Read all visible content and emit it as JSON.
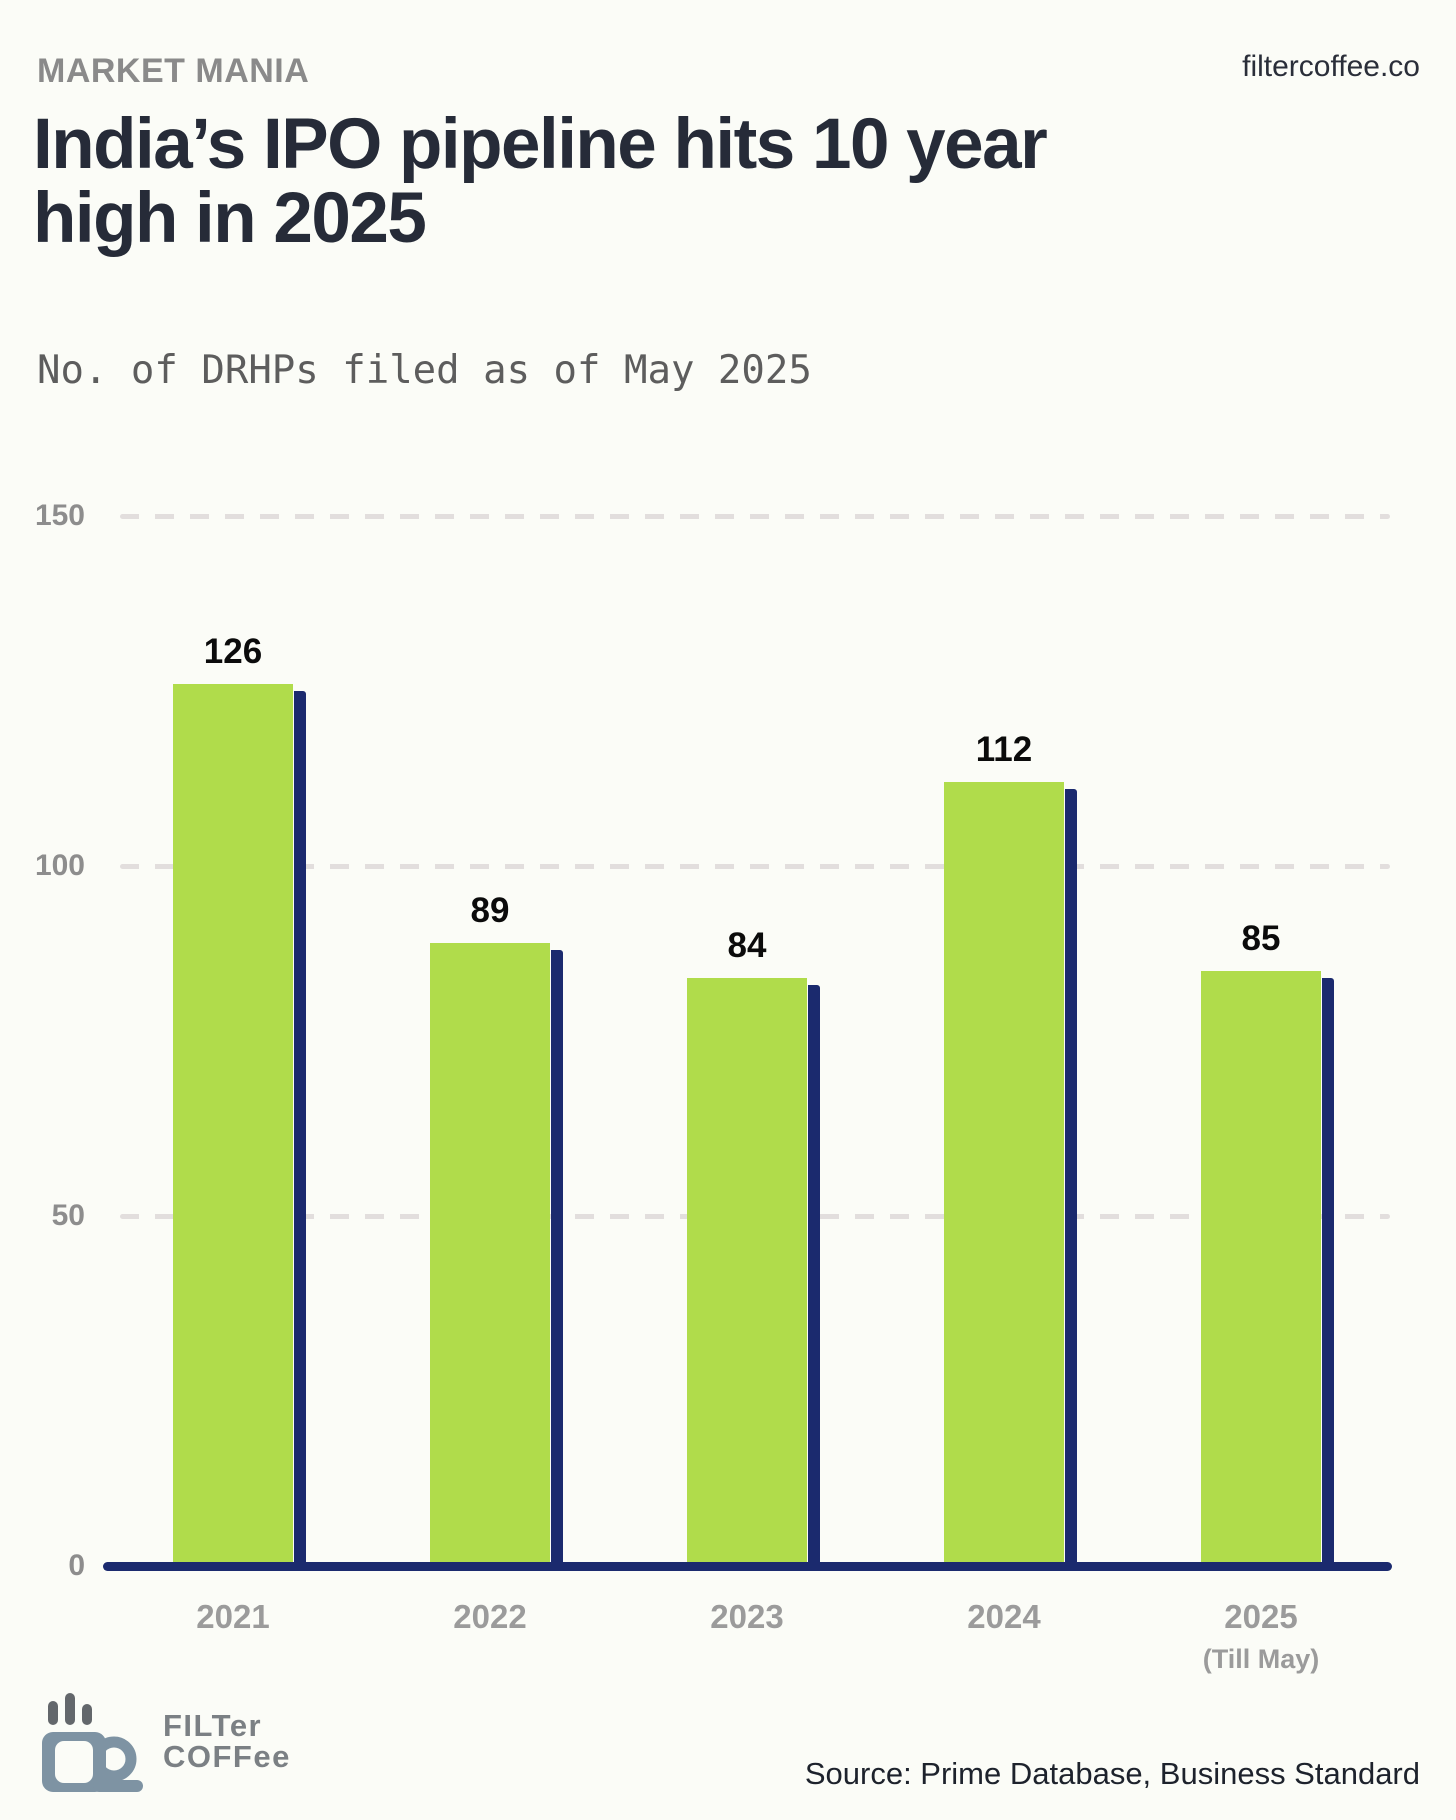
{
  "header": {
    "kicker": "MARKET MANIA",
    "site": "filtercoffee.co",
    "title_line1": "India’s IPO pipeline hits 10 year",
    "title_line2": "high in 2025",
    "subtitle": "No. of DRHPs filed as of May 2025"
  },
  "chart_data": {
    "type": "bar",
    "title": "India’s IPO pipeline hits 10 year high in 2025",
    "subtitle": "No. of DRHPs filed as of May 2025",
    "categories": [
      "2021",
      "2022",
      "2023",
      "2024",
      "2025"
    ],
    "values": [
      126,
      89,
      84,
      112,
      85
    ],
    "data_labels": [
      "126",
      "89",
      "84",
      "112",
      "85"
    ],
    "x_note": {
      "category": "2025",
      "label": "(Till May)"
    },
    "xlabel": "",
    "ylabel": "",
    "ylim": [
      0,
      150
    ],
    "yticks": [
      0,
      50,
      100,
      150
    ],
    "grid": "horizontal-dashed",
    "legend": "none",
    "colors": {
      "bar": "#b0dc4b",
      "bar_shadow": "#1b2a6e",
      "axis": "#1b2a6e",
      "gridline": "#e2dedd",
      "value_label": "#0b0b0b",
      "tick_label": "#8d8d8d",
      "category_label": "#9b9b9b",
      "background": "#fbfcf7"
    }
  },
  "footer": {
    "logo_word1": "FILTer",
    "logo_word2": "COFFee",
    "source": "Source: Prime Database, Business Standard"
  },
  "icons": {
    "logo": "coffee-mug-steam-icon"
  }
}
